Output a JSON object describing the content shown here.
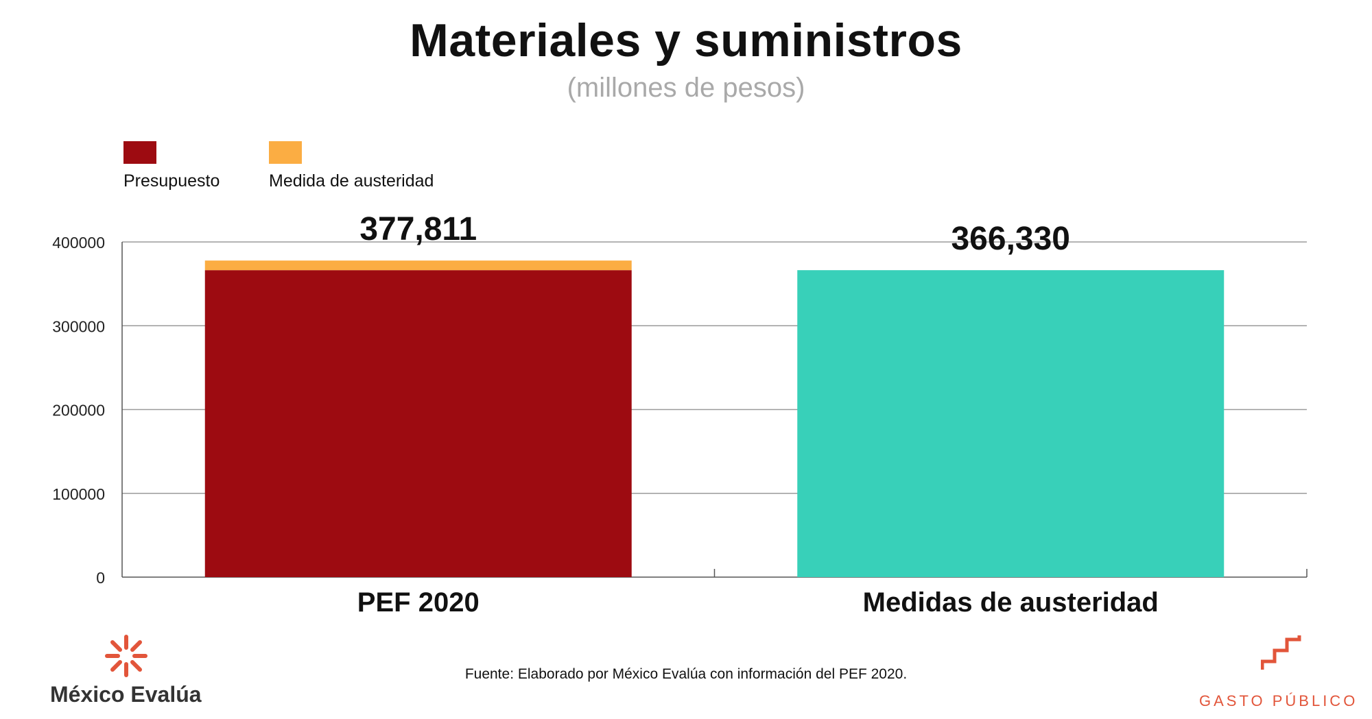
{
  "colors": {
    "presupuesto": "#9d0b11",
    "austeridad": "#fbad43",
    "medidas": "#38d0b9",
    "grid": "#9a9a9a",
    "accent": "#e2553a"
  },
  "legend": [
    {
      "label": "Presupuesto",
      "color": "#9d0b11"
    },
    {
      "label": "Medida de austeridad",
      "color": "#fbad43"
    }
  ],
  "chart_data": {
    "type": "bar",
    "title": "Materiales y suministros",
    "subtitle": "(millones de pesos)",
    "xlabel": "",
    "ylabel": "",
    "ylim": [
      0,
      400000
    ],
    "yticks": [
      "0",
      "100000",
      "200000",
      "300000",
      "400000"
    ],
    "grid": true,
    "legend_position": "top-left",
    "categories": [
      "PEF 2020",
      "Medidas de austeridad"
    ],
    "series": [
      {
        "name": "Presupuesto",
        "values": [
          366330,
          0
        ]
      },
      {
        "name": "Medida de austeridad",
        "values": [
          11481,
          0
        ]
      },
      {
        "name": "",
        "values": [
          0,
          366330
        ]
      }
    ],
    "data_labels": [
      "377,811",
      "366,330"
    ]
  },
  "footer": {
    "source": "Fuente: Elaborado por México Evalúa con información del PEF 2020.",
    "brand_left": "México Evalúa",
    "brand_right": "GASTO PÚBLICO",
    "logo_left": "mexico-evalua-logo-icon",
    "logo_right": "gasto-publico-stairs-icon"
  }
}
